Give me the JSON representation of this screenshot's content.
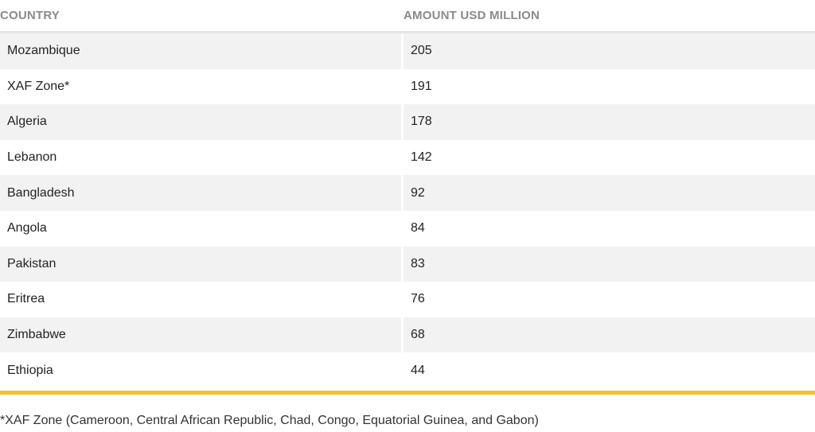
{
  "table": {
    "headers": {
      "country": "COUNTRY",
      "amount": "AMOUNT USD MILLION"
    },
    "rows": [
      {
        "country": "Mozambique",
        "amount": "205"
      },
      {
        "country": "XAF Zone*",
        "amount": "191"
      },
      {
        "country": "Algeria",
        "amount": "178"
      },
      {
        "country": "Lebanon",
        "amount": "142"
      },
      {
        "country": "Bangladesh",
        "amount": "92"
      },
      {
        "country": "Angola",
        "amount": "84"
      },
      {
        "country": "Pakistan",
        "amount": "83"
      },
      {
        "country": "Eritrea",
        "amount": "76"
      },
      {
        "country": "Zimbabwe",
        "amount": "68"
      },
      {
        "country": "Ethiopia",
        "amount": "44"
      }
    ]
  },
  "footnote": "*XAF Zone (Cameroon, Central African Republic, Chad, Congo, Equatorial Guinea, and Gabon)",
  "colors": {
    "accent": "#f2c12e",
    "header_text": "#8a8a8a",
    "row_shade": "#f2f2f2",
    "text": "#222222"
  }
}
